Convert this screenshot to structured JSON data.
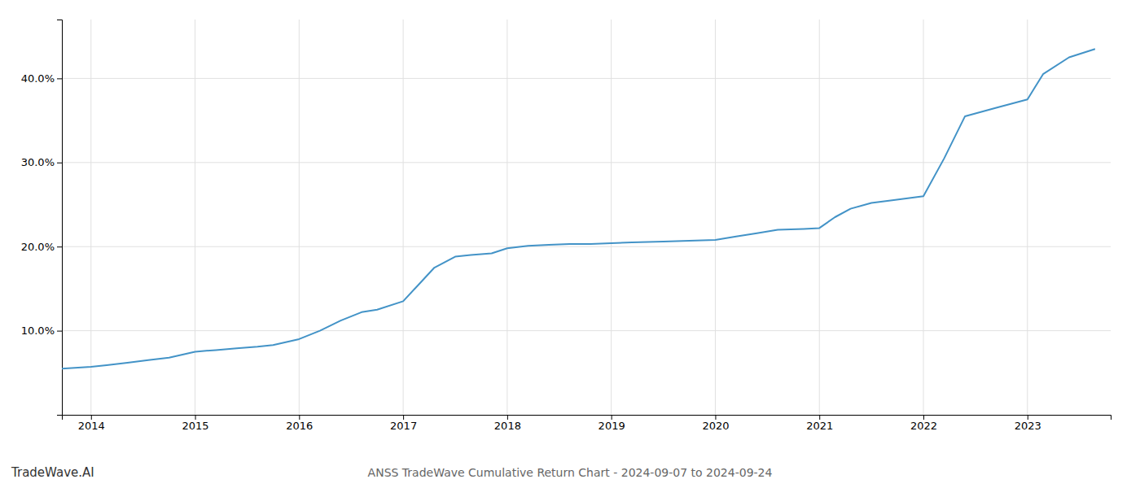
{
  "chart_data": {
    "type": "line",
    "title": "ANSS TradeWave Cumulative Return Chart - 2024-09-07 to 2024-09-24",
    "annotations": [
      "TradeWave.AI"
    ],
    "color": "#4393c7",
    "grid": true,
    "x": [
      2013.72,
      2014.0,
      2014.15,
      2014.35,
      2014.55,
      2014.75,
      2015.0,
      2015.2,
      2015.4,
      2015.6,
      2015.75,
      2016.0,
      2016.2,
      2016.4,
      2016.6,
      2016.75,
      2017.0,
      2017.15,
      2017.3,
      2017.5,
      2017.65,
      2017.85,
      2018.0,
      2018.2,
      2018.4,
      2018.6,
      2018.8,
      2019.0,
      2019.2,
      2019.5,
      2019.75,
      2020.0,
      2020.2,
      2020.4,
      2020.6,
      2020.85,
      2021.0,
      2021.15,
      2021.3,
      2021.5,
      2021.7,
      2022.0,
      2022.2,
      2022.4,
      2022.7,
      2023.0,
      2023.15,
      2023.4,
      2023.65
    ],
    "values": [
      5.5,
      5.7,
      5.9,
      6.2,
      6.5,
      6.8,
      7.5,
      7.7,
      7.9,
      8.1,
      8.3,
      9.0,
      10.0,
      11.2,
      12.2,
      12.5,
      13.5,
      15.5,
      17.5,
      18.8,
      19.0,
      19.2,
      19.8,
      20.1,
      20.2,
      20.3,
      20.3,
      20.4,
      20.5,
      20.6,
      20.7,
      20.8,
      21.2,
      21.6,
      22.0,
      22.1,
      22.2,
      23.5,
      24.5,
      25.2,
      25.5,
      26.0,
      30.5,
      35.5,
      36.5,
      37.5,
      40.5,
      42.5,
      43.5
    ],
    "xlim": [
      2013.72,
      2023.8
    ],
    "xticks": [
      2014,
      2015,
      2016,
      2017,
      2018,
      2019,
      2020,
      2021,
      2022,
      2023
    ],
    "ylim": [
      0,
      47
    ],
    "yticks": [
      {
        "value": 10.0,
        "label": "10.0%"
      },
      {
        "value": 20.0,
        "label": "20.0%"
      },
      {
        "value": 30.0,
        "label": "30.0%"
      },
      {
        "value": 40.0,
        "label": "40.0%"
      }
    ]
  }
}
